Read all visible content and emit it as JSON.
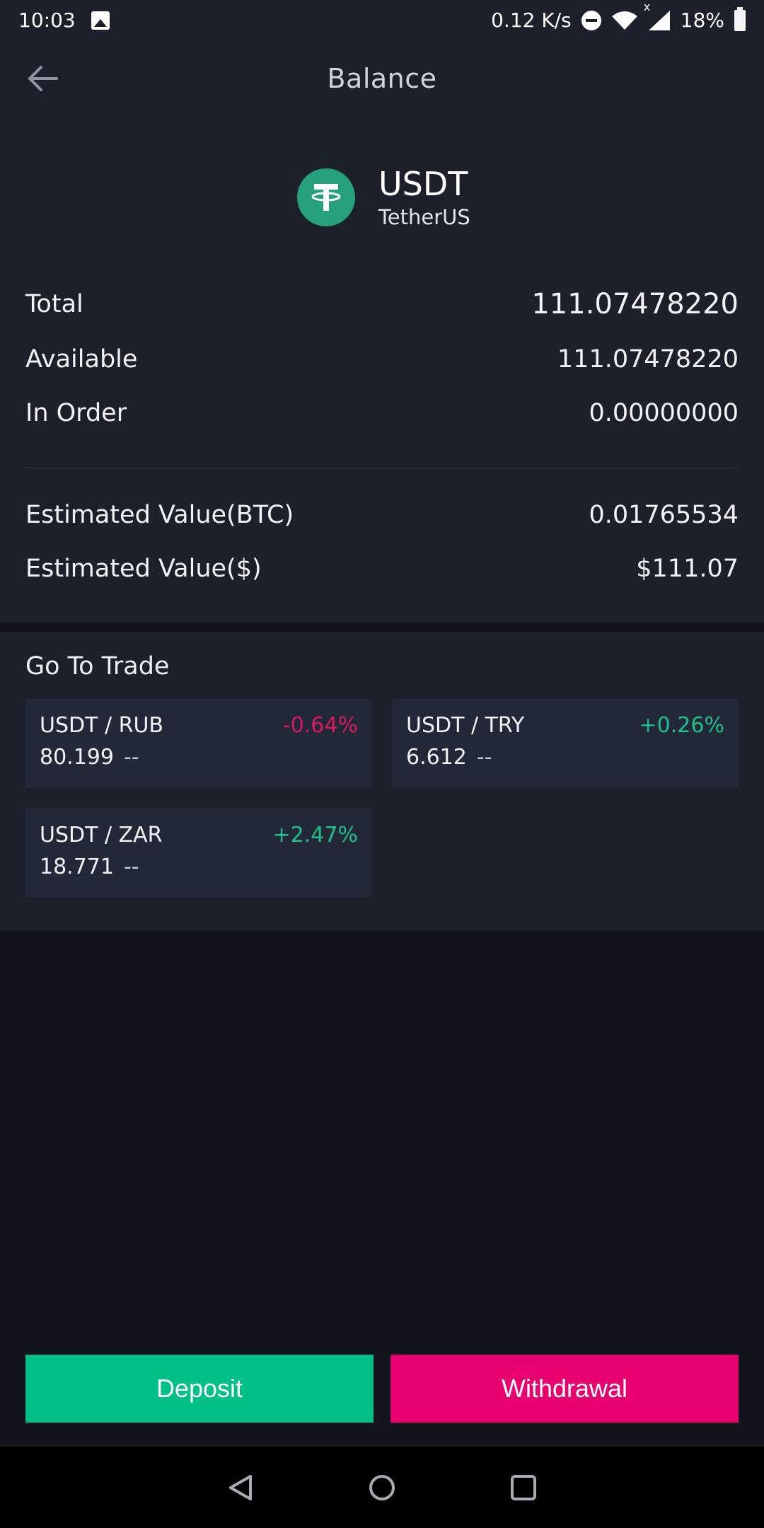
{
  "status_bar": {
    "time": "10:03",
    "net_speed": "0.12 K/s",
    "signal_mark": "x",
    "battery": "18%"
  },
  "header": {
    "title": "Balance",
    "back_icon": "arrow-left-icon"
  },
  "coin": {
    "symbol": "USDT",
    "name": "TetherUS",
    "logo_letter": "T",
    "logo_color": "#26a17b"
  },
  "balances": {
    "total_label": "Total",
    "total_value": "111.07478220",
    "available_label": "Available",
    "available_value": "111.07478220",
    "in_order_label": "In Order",
    "in_order_value": "0.00000000",
    "est_btc_label": "Estimated Value(BTC)",
    "est_btc_value": "0.01765534",
    "est_usd_label": "Estimated Value($)",
    "est_usd_value": "$111.07"
  },
  "trade": {
    "title": "Go To Trade",
    "pairs": [
      {
        "name": "USDT / RUB",
        "price": "80.199",
        "sub": "--",
        "change": "-0.64%"
      },
      {
        "name": "USDT / TRY",
        "price": "6.612",
        "sub": "--",
        "change": "+0.26%"
      },
      {
        "name": "USDT / ZAR",
        "price": "18.771",
        "sub": "--",
        "change": "+2.47%"
      }
    ]
  },
  "actions": {
    "deposit_label": "Deposit",
    "withdraw_label": "Withdrawal"
  },
  "colors": {
    "positive": "#1fbf8a",
    "negative": "#d81b60",
    "deposit": "#00c087",
    "withdraw": "#e8006f"
  }
}
